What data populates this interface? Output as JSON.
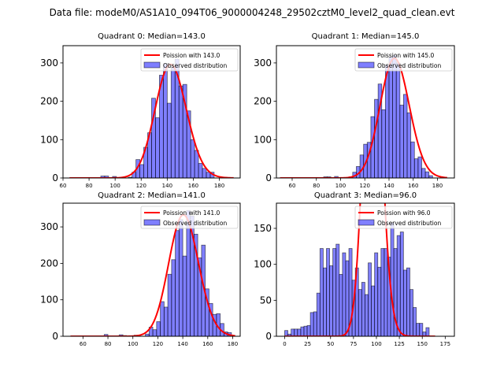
{
  "figure": {
    "suptitle": "Data file: modeM0/AS1A10_094T06_9000004248_29502cztM0_level2_quad_clean.evt"
  },
  "colors": {
    "bar_fill": "#0000ff",
    "bar_alpha": 0.5,
    "bar_edge": "#000000",
    "poisson_line": "#ff0000"
  },
  "chart_data": [
    {
      "type": "bar",
      "title": "Quadrant 0: Median=143.0",
      "xlabel": "",
      "ylabel": "",
      "xlim": [
        60,
        196
      ],
      "ylim": [
        0,
        345
      ],
      "xticks": [
        60,
        80,
        100,
        120,
        140,
        160,
        180
      ],
      "yticks": [
        0,
        100,
        200,
        300
      ],
      "legend": {
        "location": "upper-right",
        "entries": [
          "Poission with 143.0",
          "Observed distribution"
        ]
      },
      "poisson_mean": 143.0,
      "bin_width": 3,
      "bins_start": [
        65,
        68,
        71,
        74,
        77,
        80,
        83,
        86,
        89,
        92,
        95,
        98,
        101,
        104,
        107,
        110,
        113,
        116,
        119,
        122,
        125,
        128,
        131,
        134,
        137,
        140,
        143,
        146,
        149,
        152,
        155,
        158,
        161,
        164,
        167,
        170,
        173,
        176,
        179,
        182,
        185,
        188
      ],
      "counts": [
        0,
        0,
        0,
        0,
        0,
        0,
        0,
        0,
        5,
        5,
        0,
        4,
        0,
        0,
        0,
        2,
        15,
        48,
        35,
        80,
        118,
        208,
        157,
        268,
        298,
        195,
        290,
        310,
        240,
        244,
        175,
        100,
        72,
        38,
        25,
        15,
        15,
        0,
        0,
        0,
        0,
        0
      ]
    },
    {
      "type": "bar",
      "title": "Quadrant 1: Median=145.0",
      "xlabel": "",
      "ylabel": "",
      "xlim": [
        47,
        194
      ],
      "ylim": [
        0,
        345
      ],
      "xticks": [
        60,
        80,
        100,
        120,
        140,
        160,
        180
      ],
      "yticks": [
        0,
        100,
        200,
        300
      ],
      "legend": {
        "location": "upper-right",
        "entries": [
          "Poission with 145.0",
          "Observed distribution"
        ]
      },
      "poisson_mean": 145.0,
      "bin_width": 3,
      "bins_start": [
        50,
        53,
        56,
        59,
        62,
        65,
        68,
        71,
        74,
        77,
        80,
        83,
        86,
        89,
        92,
        95,
        98,
        101,
        104,
        107,
        110,
        113,
        116,
        119,
        122,
        125,
        128,
        131,
        134,
        137,
        140,
        143,
        146,
        149,
        152,
        155,
        158,
        161,
        164,
        167,
        170,
        173,
        176,
        179,
        182,
        185
      ],
      "counts": [
        0,
        0,
        0,
        0,
        0,
        0,
        0,
        0,
        0,
        0,
        0,
        0,
        3,
        3,
        0,
        4,
        0,
        0,
        0,
        3,
        15,
        30,
        60,
        88,
        93,
        160,
        205,
        245,
        178,
        295,
        315,
        320,
        300,
        190,
        218,
        170,
        94,
        50,
        55,
        25,
        16,
        6,
        0,
        0,
        0,
        0
      ]
    },
    {
      "type": "bar",
      "title": "Quadrant 2: Median=141.0",
      "xlabel": "",
      "ylabel": "",
      "xlim": [
        44,
        186
      ],
      "ylim": [
        0,
        365
      ],
      "xticks": [
        60,
        80,
        100,
        120,
        140,
        160,
        180
      ],
      "yticks": [
        0,
        100,
        200,
        300
      ],
      "legend": {
        "location": "upper-right",
        "entries": [
          "Poission with 141.0",
          "Observed distribution"
        ]
      },
      "poisson_mean": 141.0,
      "bin_width": 3,
      "bins_start": [
        50,
        53,
        56,
        59,
        62,
        65,
        68,
        71,
        74,
        77,
        80,
        83,
        86,
        89,
        92,
        95,
        98,
        101,
        104,
        107,
        110,
        113,
        116,
        119,
        122,
        125,
        128,
        131,
        134,
        137,
        140,
        143,
        146,
        149,
        152,
        155,
        158,
        161,
        164,
        167,
        170,
        173,
        176,
        179
      ],
      "counts": [
        0,
        0,
        0,
        0,
        0,
        0,
        0,
        0,
        0,
        5,
        0,
        0,
        0,
        4,
        2,
        0,
        0,
        3,
        0,
        0,
        6,
        25,
        18,
        40,
        95,
        80,
        170,
        210,
        290,
        320,
        220,
        345,
        330,
        280,
        215,
        250,
        130,
        90,
        60,
        62,
        35,
        12,
        10,
        0
      ]
    },
    {
      "type": "bar",
      "title": "Quadrant 3: Median=96.0",
      "xlabel": "",
      "ylabel": "",
      "xlim": [
        -9,
        185
      ],
      "ylim": [
        0,
        185
      ],
      "xticks": [
        0,
        25,
        50,
        75,
        100,
        125,
        150,
        175
      ],
      "yticks": [
        0,
        50,
        100,
        150
      ],
      "legend": {
        "location": "upper-right",
        "entries": [
          "Poission with 96.0",
          "Observed distribution"
        ]
      },
      "poisson_mean": 96.0,
      "bin_width": 3.5,
      "bins_start": [
        0,
        3.5,
        7,
        10.5,
        14,
        17.5,
        21,
        24.5,
        28,
        31.5,
        35,
        38.5,
        42,
        45.5,
        49,
        52.5,
        56,
        59.5,
        63,
        66.5,
        70,
        73.5,
        77,
        80.5,
        84,
        87.5,
        91,
        94.5,
        98,
        101.5,
        105,
        108.5,
        112,
        115.5,
        119,
        122.5,
        126,
        129.5,
        133,
        136.5,
        140,
        143.5,
        147,
        150.5,
        154,
        157.5,
        161
      ],
      "counts": [
        8,
        3,
        10,
        10,
        10,
        13,
        14,
        15,
        33,
        34,
        60,
        122,
        95,
        122,
        98,
        122,
        128,
        86,
        116,
        105,
        122,
        78,
        95,
        65,
        75,
        58,
        102,
        70,
        116,
        96,
        122,
        122,
        110,
        158,
        122,
        140,
        145,
        92,
        95,
        65,
        40,
        18,
        18,
        6,
        12,
        0,
        0
      ]
    }
  ]
}
